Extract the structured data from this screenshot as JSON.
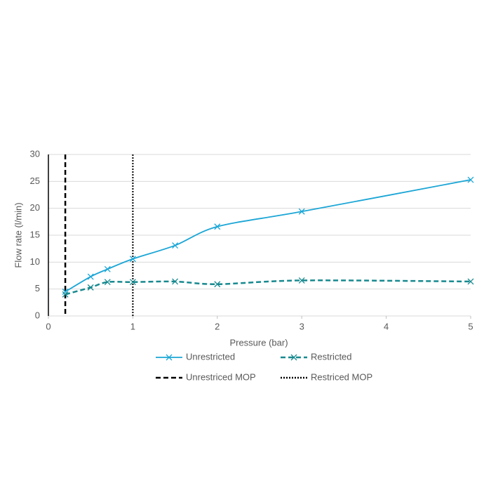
{
  "chart_data": {
    "type": "line",
    "xlabel": "Pressure (bar)",
    "ylabel": "Flow rate (l/min)",
    "xlim": [
      0,
      5
    ],
    "xticks": [
      0,
      1,
      2,
      3,
      4,
      5
    ],
    "ylim": [
      0,
      30
    ],
    "yticks": [
      0,
      5,
      10,
      15,
      20,
      25,
      30
    ],
    "grid": true,
    "series": [
      {
        "name": "Unrestricted",
        "color": "#1ba6d6",
        "dash": "solid",
        "x": [
          0.2,
          0.5,
          0.7,
          1,
          1.5,
          2,
          3,
          5
        ],
        "values": [
          4.5,
          7.3,
          8.7,
          10.6,
          13.1,
          16.6,
          19.4,
          25.3
        ]
      },
      {
        "name": "Restricted",
        "color": "#17898f",
        "dash": "dashed",
        "x": [
          0.2,
          0.5,
          0.7,
          1,
          1.5,
          2,
          3,
          5
        ],
        "values": [
          4.0,
          5.3,
          6.3,
          6.3,
          6.4,
          5.9,
          6.6,
          6.4
        ]
      }
    ],
    "vlines": [
      {
        "name": "Unrestriced MOP",
        "x": 0.2,
        "color": "#000000",
        "dash": "dashed"
      },
      {
        "name": "Restriced MOP",
        "x": 1,
        "color": "#000000",
        "dash": "dotted"
      }
    ]
  }
}
